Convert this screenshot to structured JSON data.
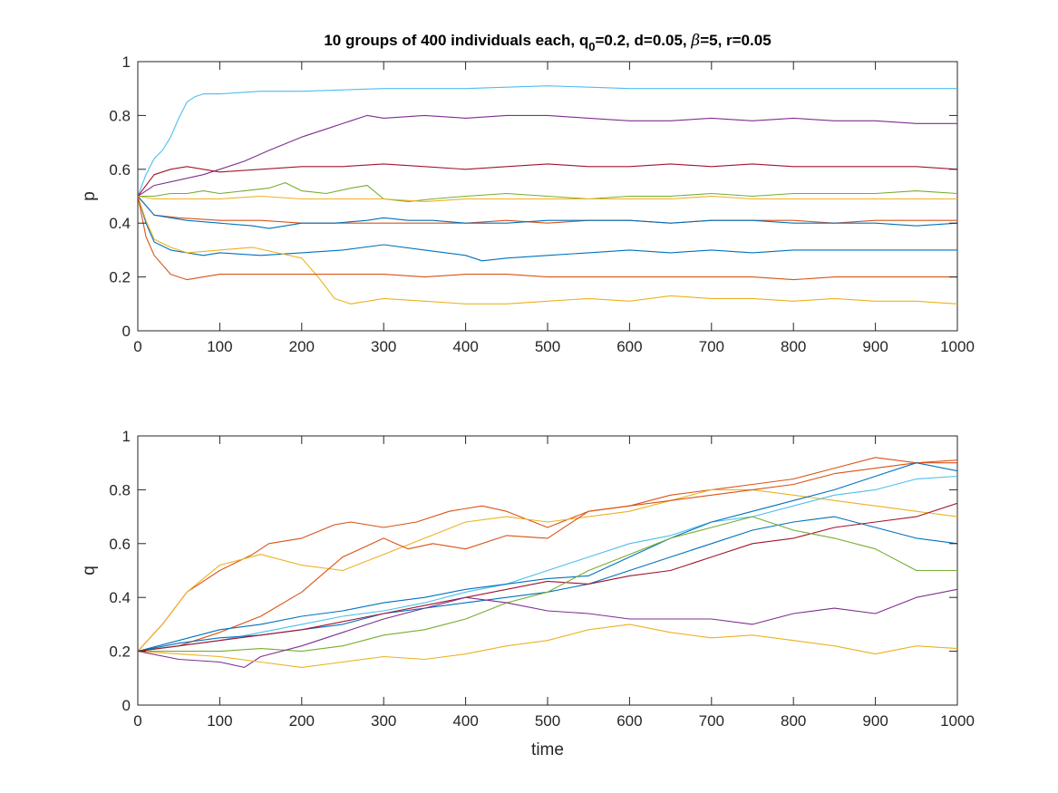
{
  "figure": {
    "title_main": "10 groups of 400 individuals each, q",
    "title_sub": "0",
    "title_rest1": "=0.2, d=0.05, ",
    "title_beta": "β",
    "title_rest2": "=5, r=0.05"
  },
  "chart_data": [
    {
      "type": "line",
      "ylabel": "p",
      "xlabel": "",
      "xlim": [
        0,
        1000
      ],
      "ylim": [
        0,
        1
      ],
      "xticks": [
        "0",
        "100",
        "200",
        "300",
        "400",
        "500",
        "600",
        "700",
        "800",
        "900",
        "1000"
      ],
      "yticks": [
        "0",
        "0.2",
        "0.4",
        "0.6",
        "0.8",
        "1"
      ],
      "grid": false,
      "series": [
        {
          "color": "#4DBEEE",
          "x": [
            0,
            10,
            20,
            30,
            40,
            50,
            60,
            70,
            80,
            100,
            150,
            200,
            300,
            400,
            500,
            600,
            700,
            800,
            900,
            1000
          ],
          "y": [
            0.5,
            0.58,
            0.64,
            0.67,
            0.72,
            0.79,
            0.85,
            0.87,
            0.88,
            0.88,
            0.89,
            0.89,
            0.9,
            0.9,
            0.91,
            0.9,
            0.9,
            0.9,
            0.9,
            0.9
          ]
        },
        {
          "color": "#7E2F8E",
          "x": [
            0,
            20,
            50,
            80,
            100,
            130,
            160,
            200,
            230,
            260,
            280,
            300,
            350,
            400,
            450,
            500,
            550,
            600,
            650,
            700,
            750,
            800,
            850,
            900,
            950,
            1000
          ],
          "y": [
            0.5,
            0.54,
            0.56,
            0.58,
            0.6,
            0.63,
            0.67,
            0.72,
            0.75,
            0.78,
            0.8,
            0.79,
            0.8,
            0.79,
            0.8,
            0.8,
            0.79,
            0.78,
            0.78,
            0.79,
            0.78,
            0.79,
            0.78,
            0.78,
            0.77,
            0.77
          ]
        },
        {
          "color": "#A2142F",
          "x": [
            0,
            20,
            40,
            60,
            80,
            100,
            150,
            200,
            250,
            300,
            350,
            400,
            450,
            500,
            550,
            600,
            650,
            700,
            750,
            800,
            850,
            900,
            950,
            1000
          ],
          "y": [
            0.5,
            0.58,
            0.6,
            0.61,
            0.6,
            0.59,
            0.6,
            0.61,
            0.61,
            0.62,
            0.61,
            0.6,
            0.61,
            0.62,
            0.61,
            0.61,
            0.62,
            0.61,
            0.62,
            0.61,
            0.61,
            0.61,
            0.61,
            0.6
          ]
        },
        {
          "color": "#77AC30",
          "x": [
            0,
            20,
            40,
            60,
            80,
            100,
            130,
            160,
            180,
            200,
            230,
            260,
            280,
            300,
            330,
            360,
            400,
            450,
            500,
            550,
            600,
            650,
            700,
            750,
            800,
            850,
            900,
            950,
            1000
          ],
          "y": [
            0.5,
            0.5,
            0.51,
            0.51,
            0.52,
            0.51,
            0.52,
            0.53,
            0.55,
            0.52,
            0.51,
            0.53,
            0.54,
            0.49,
            0.48,
            0.49,
            0.5,
            0.51,
            0.5,
            0.49,
            0.5,
            0.5,
            0.51,
            0.5,
            0.51,
            0.51,
            0.51,
            0.52,
            0.51
          ]
        },
        {
          "color": "#EDB120",
          "x": [
            0,
            20,
            50,
            100,
            150,
            200,
            250,
            300,
            350,
            400,
            450,
            500,
            550,
            600,
            650,
            700,
            750,
            800,
            850,
            900,
            950,
            1000
          ],
          "y": [
            0.5,
            0.49,
            0.49,
            0.49,
            0.5,
            0.49,
            0.49,
            0.49,
            0.48,
            0.49,
            0.49,
            0.49,
            0.49,
            0.49,
            0.49,
            0.5,
            0.49,
            0.49,
            0.49,
            0.49,
            0.49,
            0.49
          ]
        },
        {
          "color": "#D95319",
          "x": [
            0,
            20,
            50,
            100,
            150,
            200,
            250,
            300,
            350,
            400,
            450,
            500,
            550,
            600,
            650,
            700,
            750,
            800,
            850,
            900,
            950,
            1000
          ],
          "y": [
            0.5,
            0.43,
            0.42,
            0.41,
            0.41,
            0.4,
            0.4,
            0.4,
            0.4,
            0.4,
            0.41,
            0.4,
            0.41,
            0.41,
            0.4,
            0.41,
            0.41,
            0.41,
            0.4,
            0.41,
            0.41,
            0.41
          ]
        },
        {
          "color": "#0072BD",
          "x": [
            0,
            20,
            40,
            60,
            100,
            140,
            160,
            180,
            200,
            240,
            280,
            300,
            330,
            360,
            400,
            450,
            500,
            550,
            600,
            650,
            700,
            750,
            800,
            850,
            900,
            950,
            1000
          ],
          "y": [
            0.5,
            0.43,
            0.42,
            0.41,
            0.4,
            0.39,
            0.38,
            0.39,
            0.4,
            0.4,
            0.41,
            0.42,
            0.41,
            0.41,
            0.4,
            0.4,
            0.41,
            0.41,
            0.41,
            0.4,
            0.41,
            0.41,
            0.4,
            0.4,
            0.4,
            0.39,
            0.4
          ]
        },
        {
          "color": "#0072BD",
          "x": [
            0,
            10,
            20,
            40,
            60,
            80,
            100,
            150,
            200,
            250,
            300,
            350,
            400,
            420,
            450,
            500,
            550,
            600,
            650,
            700,
            750,
            800,
            850,
            900,
            950,
            1000
          ],
          "y": [
            0.5,
            0.4,
            0.33,
            0.3,
            0.29,
            0.28,
            0.29,
            0.28,
            0.29,
            0.3,
            0.32,
            0.3,
            0.28,
            0.26,
            0.27,
            0.28,
            0.29,
            0.3,
            0.29,
            0.3,
            0.29,
            0.3,
            0.3,
            0.3,
            0.3,
            0.3
          ]
        },
        {
          "color": "#EDB120",
          "x": [
            0,
            10,
            20,
            40,
            60,
            100,
            140,
            170,
            200,
            220,
            240,
            260,
            300,
            350,
            400,
            450,
            500,
            550,
            600,
            650,
            700,
            750,
            800,
            850,
            900,
            950,
            1000
          ],
          "y": [
            0.5,
            0.41,
            0.34,
            0.31,
            0.29,
            0.3,
            0.31,
            0.29,
            0.27,
            0.2,
            0.12,
            0.1,
            0.12,
            0.11,
            0.1,
            0.1,
            0.11,
            0.12,
            0.11,
            0.13,
            0.12,
            0.12,
            0.11,
            0.12,
            0.11,
            0.11,
            0.1
          ]
        },
        {
          "color": "#D95319",
          "x": [
            0,
            10,
            20,
            40,
            60,
            80,
            100,
            150,
            200,
            250,
            300,
            350,
            400,
            450,
            500,
            550,
            600,
            650,
            700,
            750,
            800,
            850,
            900,
            950,
            1000
          ],
          "y": [
            0.5,
            0.35,
            0.28,
            0.21,
            0.19,
            0.2,
            0.21,
            0.21,
            0.21,
            0.21,
            0.21,
            0.2,
            0.21,
            0.21,
            0.2,
            0.2,
            0.2,
            0.2,
            0.2,
            0.2,
            0.19,
            0.2,
            0.2,
            0.2,
            0.2
          ]
        }
      ]
    },
    {
      "type": "line",
      "ylabel": "q",
      "xlabel": "time",
      "xlim": [
        0,
        1000
      ],
      "ylim": [
        0,
        1
      ],
      "xticks": [
        "0",
        "100",
        "200",
        "300",
        "400",
        "500",
        "600",
        "700",
        "800",
        "900",
        "1000"
      ],
      "yticks": [
        "0",
        "0.2",
        "0.4",
        "0.6",
        "0.8",
        "1"
      ],
      "grid": false,
      "series": [
        {
          "color": "#D95319",
          "x": [
            0,
            30,
            60,
            100,
            140,
            160,
            200,
            240,
            260,
            300,
            340,
            380,
            420,
            450,
            500,
            550,
            600,
            650,
            700,
            750,
            800,
            850,
            900,
            950,
            1000
          ],
          "y": [
            0.2,
            0.3,
            0.42,
            0.5,
            0.56,
            0.6,
            0.62,
            0.67,
            0.68,
            0.66,
            0.68,
            0.72,
            0.74,
            0.72,
            0.66,
            0.72,
            0.74,
            0.78,
            0.8,
            0.82,
            0.84,
            0.88,
            0.92,
            0.9,
            0.91
          ]
        },
        {
          "color": "#EDB120",
          "x": [
            0,
            30,
            60,
            100,
            150,
            200,
            250,
            300,
            350,
            400,
            450,
            500,
            550,
            600,
            650,
            700,
            750,
            800,
            850,
            900,
            950,
            1000
          ],
          "y": [
            0.2,
            0.3,
            0.42,
            0.52,
            0.56,
            0.52,
            0.5,
            0.56,
            0.62,
            0.68,
            0.7,
            0.68,
            0.7,
            0.72,
            0.76,
            0.8,
            0.8,
            0.78,
            0.76,
            0.74,
            0.72,
            0.7
          ]
        },
        {
          "color": "#D95319",
          "x": [
            0,
            50,
            100,
            150,
            200,
            250,
            300,
            330,
            360,
            400,
            450,
            500,
            550,
            600,
            650,
            700,
            750,
            800,
            850,
            900,
            950,
            1000
          ],
          "y": [
            0.2,
            0.22,
            0.27,
            0.33,
            0.42,
            0.55,
            0.62,
            0.58,
            0.6,
            0.58,
            0.63,
            0.62,
            0.72,
            0.74,
            0.76,
            0.78,
            0.8,
            0.82,
            0.86,
            0.88,
            0.9,
            0.9
          ]
        },
        {
          "color": "#4DBEEE",
          "x": [
            0,
            50,
            100,
            150,
            200,
            250,
            300,
            350,
            400,
            450,
            500,
            550,
            600,
            650,
            700,
            750,
            800,
            850,
            900,
            950,
            1000
          ],
          "y": [
            0.2,
            0.22,
            0.24,
            0.27,
            0.3,
            0.33,
            0.35,
            0.38,
            0.42,
            0.45,
            0.5,
            0.55,
            0.6,
            0.63,
            0.68,
            0.7,
            0.74,
            0.78,
            0.8,
            0.84,
            0.85
          ]
        },
        {
          "color": "#0072BD",
          "x": [
            0,
            50,
            100,
            150,
            200,
            250,
            300,
            350,
            400,
            450,
            500,
            550,
            600,
            650,
            700,
            750,
            800,
            850,
            900,
            950,
            1000
          ],
          "y": [
            0.2,
            0.24,
            0.28,
            0.3,
            0.33,
            0.35,
            0.38,
            0.4,
            0.43,
            0.45,
            0.47,
            0.48,
            0.55,
            0.62,
            0.68,
            0.72,
            0.76,
            0.8,
            0.85,
            0.9,
            0.87
          ]
        },
        {
          "color": "#0072BD",
          "x": [
            0,
            50,
            100,
            150,
            200,
            250,
            300,
            350,
            400,
            450,
            500,
            550,
            600,
            650,
            700,
            750,
            800,
            850,
            900,
            950,
            1000
          ],
          "y": [
            0.2,
            0.23,
            0.25,
            0.26,
            0.28,
            0.3,
            0.34,
            0.36,
            0.38,
            0.4,
            0.42,
            0.45,
            0.5,
            0.55,
            0.6,
            0.65,
            0.68,
            0.7,
            0.66,
            0.62,
            0.6
          ]
        },
        {
          "color": "#A2142F",
          "x": [
            0,
            50,
            100,
            150,
            200,
            250,
            300,
            350,
            400,
            450,
            500,
            550,
            600,
            650,
            700,
            750,
            800,
            850,
            900,
            950,
            1000
          ],
          "y": [
            0.2,
            0.22,
            0.24,
            0.26,
            0.28,
            0.31,
            0.34,
            0.37,
            0.4,
            0.43,
            0.46,
            0.45,
            0.48,
            0.5,
            0.55,
            0.6,
            0.62,
            0.66,
            0.68,
            0.7,
            0.75
          ]
        },
        {
          "color": "#77AC30",
          "x": [
            0,
            50,
            100,
            150,
            200,
            250,
            300,
            350,
            400,
            450,
            500,
            550,
            600,
            650,
            700,
            750,
            800,
            850,
            900,
            950,
            1000
          ],
          "y": [
            0.2,
            0.2,
            0.2,
            0.21,
            0.2,
            0.22,
            0.26,
            0.28,
            0.32,
            0.38,
            0.42,
            0.5,
            0.56,
            0.62,
            0.66,
            0.7,
            0.65,
            0.62,
            0.58,
            0.5,
            0.5
          ]
        },
        {
          "color": "#7E2F8E",
          "x": [
            0,
            50,
            100,
            130,
            150,
            200,
            250,
            300,
            350,
            400,
            450,
            500,
            550,
            600,
            650,
            700,
            750,
            800,
            850,
            900,
            950,
            1000
          ],
          "y": [
            0.2,
            0.17,
            0.16,
            0.14,
            0.18,
            0.22,
            0.27,
            0.32,
            0.36,
            0.4,
            0.38,
            0.35,
            0.34,
            0.32,
            0.32,
            0.32,
            0.3,
            0.34,
            0.36,
            0.34,
            0.4,
            0.43
          ]
        },
        {
          "color": "#EDB120",
          "x": [
            0,
            50,
            100,
            150,
            200,
            250,
            300,
            350,
            400,
            450,
            500,
            550,
            600,
            650,
            700,
            750,
            800,
            850,
            900,
            950,
            1000
          ],
          "y": [
            0.2,
            0.19,
            0.18,
            0.16,
            0.14,
            0.16,
            0.18,
            0.17,
            0.19,
            0.22,
            0.24,
            0.28,
            0.3,
            0.27,
            0.25,
            0.26,
            0.24,
            0.22,
            0.19,
            0.22,
            0.21
          ]
        }
      ]
    }
  ]
}
